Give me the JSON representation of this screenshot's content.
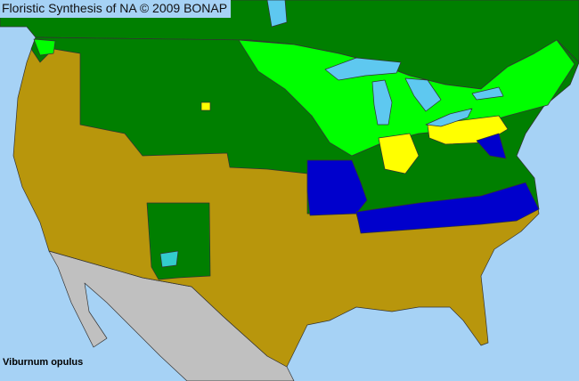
{
  "title": "Floristic Synthesis of NA © 2009 BONAP",
  "species": "Viburnum opulus",
  "colors": {
    "ocean": "#a6d2f5",
    "lakes": "#5ec8f0",
    "native_dark_green": "#007f00",
    "present_light_green": "#00ff00",
    "yellow_green": "#ccff33",
    "yellow": "#ffff00",
    "absent_olive": "#b8960c",
    "blue": "#0000cc",
    "outside_gray": "#c0c0c0",
    "teal": "#33cccc"
  }
}
